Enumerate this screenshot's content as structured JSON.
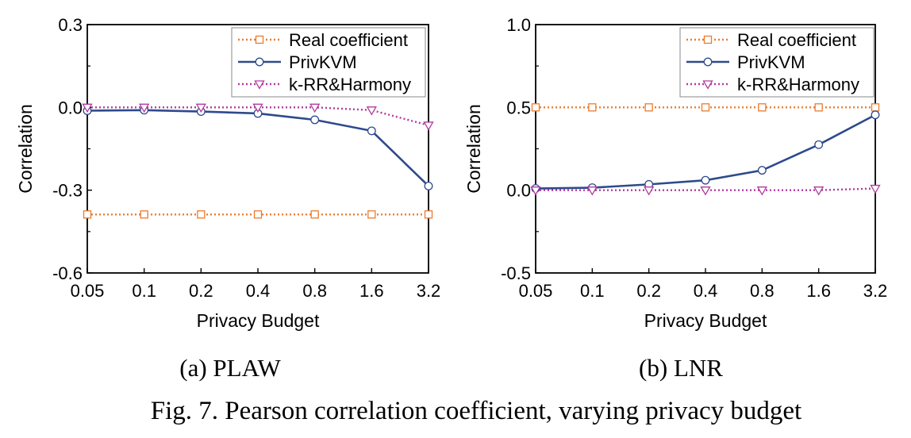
{
  "figure_caption": "Fig. 7.  Pearson correlation coefficient, varying privacy budget",
  "colors": {
    "real": "#ec7b2d",
    "privkvm": "#2e4a8c",
    "krr": "#b03b9e",
    "axis": "#000000"
  },
  "chart_data": [
    {
      "type": "line",
      "subcaption": "(a) PLAW",
      "xlabel": "Privacy Budget",
      "ylabel": "Correlation",
      "categories": [
        "0.05",
        "0.1",
        "0.2",
        "0.4",
        "0.8",
        "1.6",
        "3.2"
      ],
      "ylim": [
        -0.6,
        0.3
      ],
      "yticks": [
        "0.3",
        "0.0",
        "-0.3",
        "-0.6"
      ],
      "ytick_values": [
        0.3,
        0.0,
        -0.3,
        -0.6
      ],
      "legend_position": "top-right",
      "grid": false,
      "series": [
        {
          "name": "Real coefficient",
          "marker": "square",
          "style": "dotted",
          "color_key": "real",
          "values": [
            -0.388,
            -0.388,
            -0.388,
            -0.388,
            -0.388,
            -0.388,
            -0.388
          ]
        },
        {
          "name": "PrivKVM",
          "marker": "circle",
          "style": "solid",
          "color_key": "privkvm",
          "values": [
            -0.012,
            -0.01,
            -0.015,
            -0.022,
            -0.045,
            -0.085,
            -0.285
          ]
        },
        {
          "name": "k-RR&Harmony",
          "marker": "triangle-down",
          "style": "dotted",
          "color_key": "krr",
          "values": [
            0.0,
            0.0,
            0.0,
            0.0,
            0.0,
            -0.01,
            -0.065
          ]
        }
      ]
    },
    {
      "type": "line",
      "subcaption": "(b) LNR",
      "xlabel": "Privacy Budget",
      "ylabel": "Correlation",
      "categories": [
        "0.05",
        "0.1",
        "0.2",
        "0.4",
        "0.8",
        "1.6",
        "3.2"
      ],
      "ylim": [
        -0.5,
        1.0
      ],
      "yticks": [
        "1.0",
        "0.5",
        "0.0",
        "-0.5"
      ],
      "ytick_values": [
        1.0,
        0.5,
        0.0,
        -0.5
      ],
      "legend_position": "top-right",
      "grid": false,
      "series": [
        {
          "name": "Real coefficient",
          "marker": "square",
          "style": "dotted",
          "color_key": "real",
          "values": [
            0.5,
            0.5,
            0.5,
            0.5,
            0.5,
            0.5,
            0.5
          ]
        },
        {
          "name": "PrivKVM",
          "marker": "circle",
          "style": "solid",
          "color_key": "privkvm",
          "values": [
            0.01,
            0.015,
            0.035,
            0.06,
            0.12,
            0.275,
            0.455
          ]
        },
        {
          "name": "k-RR&Harmony",
          "marker": "triangle-down",
          "style": "dotted",
          "color_key": "krr",
          "values": [
            0.0,
            0.0,
            0.0,
            0.0,
            0.0,
            0.0,
            0.01
          ]
        }
      ]
    }
  ]
}
